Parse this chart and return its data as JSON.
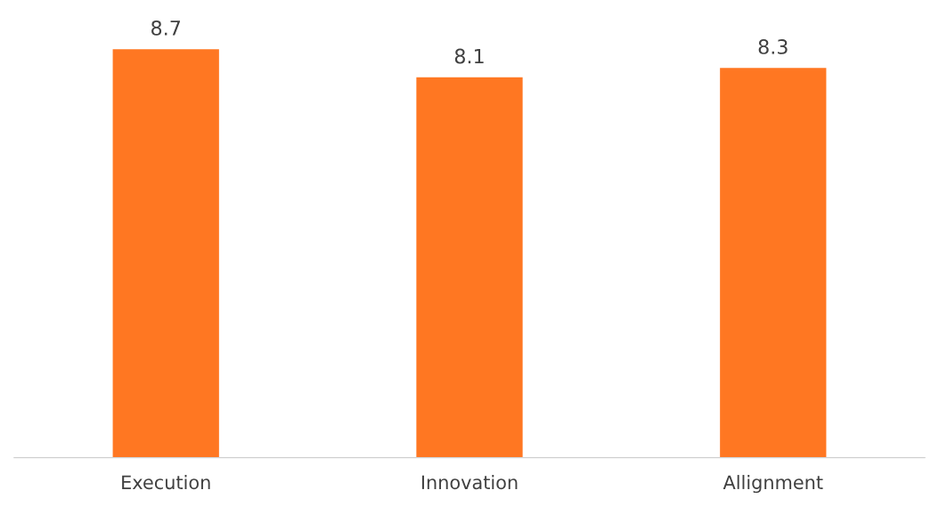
{
  "chart_data": {
    "type": "bar",
    "categories": [
      "Execution",
      "Innovation",
      "Allignment"
    ],
    "values": [
      8.7,
      8.1,
      8.3
    ],
    "color": "#ff7722",
    "data_labels": true,
    "grid": false,
    "legend": false,
    "tick_labels": "x"
  }
}
